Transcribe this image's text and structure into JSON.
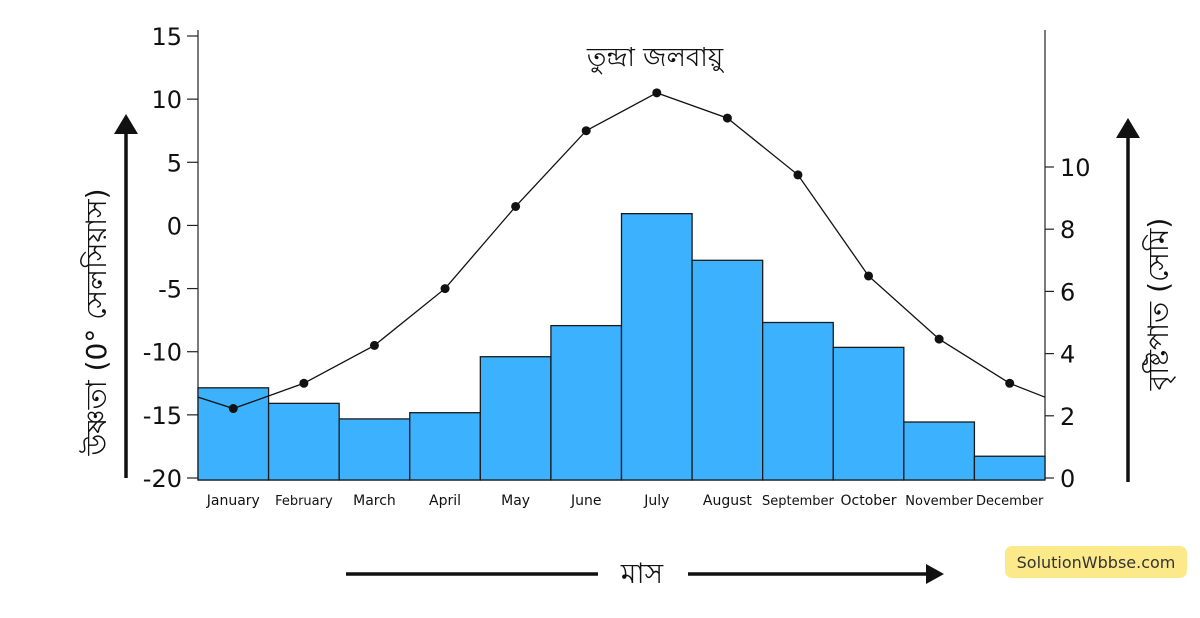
{
  "chart_data": {
    "type": "bar",
    "title": "তুন্দ্রা জলবায়ু",
    "xlabel": "মাস",
    "categories": [
      "January",
      "February",
      "March",
      "April",
      "May",
      "June",
      "July",
      "August",
      "September",
      "October",
      "November",
      "December"
    ],
    "series": [
      {
        "kind": "line",
        "axis": "left",
        "color": "#111111",
        "values": [
          -14.5,
          -12.5,
          -9.5,
          -5,
          1.5,
          7.5,
          10.5,
          8.5,
          4,
          -4,
          -9,
          -12.5
        ]
      },
      {
        "kind": "bar",
        "axis": "right",
        "color": "#3cb2ff",
        "values": [
          2.9,
          2.4,
          1.9,
          2.1,
          3.9,
          4.9,
          8.5,
          7.0,
          5.0,
          4.2,
          1.8,
          0.7
        ]
      }
    ],
    "y_left": {
      "label": "উষ্ণতা (0° সেলসিয়াস)",
      "ticks": [
        15,
        10,
        5,
        0,
        -5,
        -10,
        -15,
        -20
      ],
      "ylim": [
        -20,
        15
      ]
    },
    "y_right": {
      "label": "বৃষ্টিপাত (সেমি)",
      "ticks": [
        10,
        8,
        6,
        4,
        2,
        0
      ],
      "ylim": [
        0,
        11.5
      ]
    },
    "grid": false
  },
  "watermark": "SolutionWbbse.com"
}
